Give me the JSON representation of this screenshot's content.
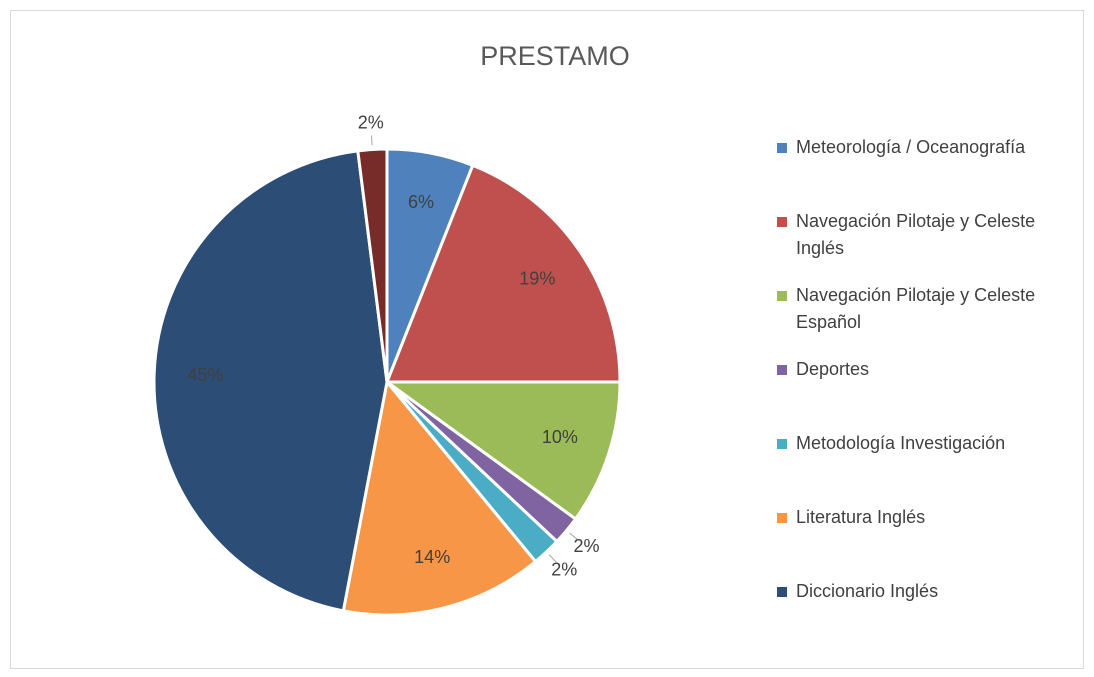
{
  "chart_data": {
    "type": "pie",
    "title": "PRESTAMO",
    "categories": [
      "Meteorología / Oceanografía",
      "Navegación Pilotaje y Celeste Inglés",
      "Navegación Pilotaje y Celeste Español",
      "Deportes",
      "Metodología Investigación",
      "Literatura Inglés",
      "Diccionario Inglés",
      null
    ],
    "values": [
      6,
      19,
      10,
      2,
      2,
      14,
      45,
      2
    ],
    "value_labels": [
      "6%",
      "19%",
      "10%",
      "2%",
      "2%",
      "14%",
      "45%",
      "2%"
    ],
    "colors": [
      "#4f81bd",
      "#c0504d",
      "#9bbb59",
      "#8064a2",
      "#4bacc6",
      "#f79646",
      "#2c4d75",
      "#772c2a"
    ],
    "legend": "right"
  }
}
